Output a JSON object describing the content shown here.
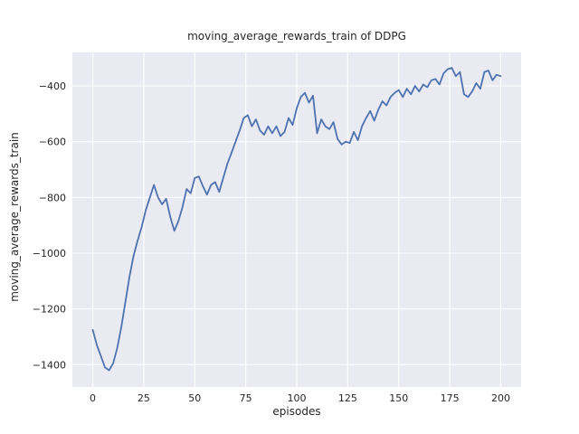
{
  "chart_data": {
    "type": "line",
    "title": "moving_average_rewards_train of DDPG",
    "xlabel": "episodes",
    "ylabel": "moving_average_rewards_train",
    "xlim": [
      -10,
      210
    ],
    "ylim": [
      -1480,
      -280
    ],
    "xticks": [
      0,
      25,
      50,
      75,
      100,
      125,
      150,
      175,
      200
    ],
    "yticks": [
      -400,
      -600,
      -800,
      -1000,
      -1200,
      -1400
    ],
    "grid": true,
    "legend": "none",
    "plot_bg_color": "#eaeaf2",
    "grid_color": "#ffffff",
    "line_color": "#4c72b0",
    "x": [
      0,
      2,
      4,
      6,
      8,
      10,
      12,
      14,
      16,
      18,
      20,
      22,
      24,
      26,
      28,
      30,
      32,
      34,
      36,
      38,
      40,
      42,
      44,
      46,
      48,
      50,
      52,
      54,
      56,
      58,
      60,
      62,
      64,
      66,
      68,
      70,
      72,
      74,
      76,
      78,
      80,
      82,
      84,
      86,
      88,
      90,
      92,
      94,
      96,
      98,
      100,
      102,
      104,
      106,
      108,
      110,
      112,
      114,
      116,
      118,
      120,
      122,
      124,
      126,
      128,
      130,
      132,
      134,
      136,
      138,
      140,
      142,
      144,
      146,
      148,
      150,
      152,
      154,
      156,
      158,
      160,
      162,
      164,
      166,
      168,
      170,
      172,
      174,
      176,
      178,
      180,
      182,
      184,
      186,
      188,
      190,
      192,
      194,
      196,
      198,
      200
    ],
    "y": [
      -1275,
      -1330,
      -1370,
      -1410,
      -1420,
      -1395,
      -1340,
      -1265,
      -1175,
      -1085,
      -1010,
      -955,
      -905,
      -845,
      -800,
      -755,
      -800,
      -825,
      -805,
      -870,
      -920,
      -885,
      -835,
      -770,
      -785,
      -730,
      -725,
      -760,
      -790,
      -755,
      -745,
      -780,
      -730,
      -680,
      -640,
      -600,
      -560,
      -515,
      -505,
      -545,
      -520,
      -560,
      -575,
      -545,
      -570,
      -545,
      -580,
      -565,
      -515,
      -540,
      -480,
      -440,
      -425,
      -460,
      -435,
      -570,
      -520,
      -545,
      -555,
      -530,
      -590,
      -610,
      -600,
      -605,
      -565,
      -595,
      -545,
      -515,
      -490,
      -525,
      -485,
      -455,
      -470,
      -440,
      -425,
      -415,
      -440,
      -410,
      -430,
      -400,
      -420,
      -395,
      -405,
      -380,
      -375,
      -395,
      -355,
      -340,
      -335,
      -365,
      -350,
      -430,
      -440,
      -420,
      -390,
      -410,
      -350,
      -345,
      -380,
      -360,
      -365
    ]
  }
}
